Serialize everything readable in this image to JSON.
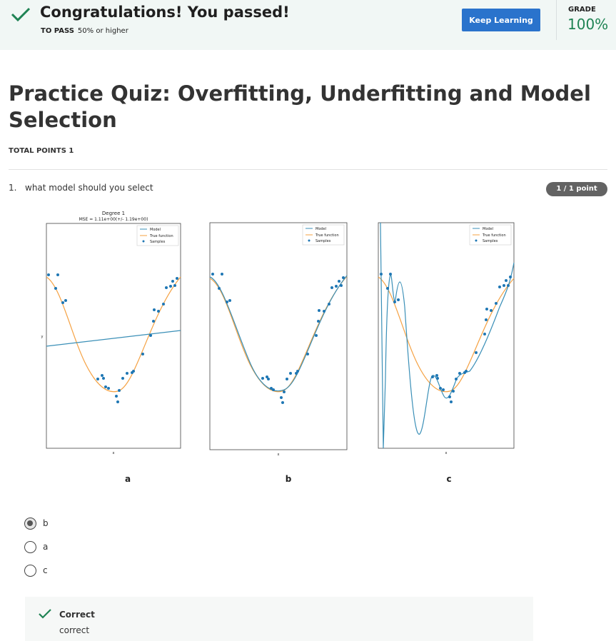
{
  "banner": {
    "message": "Congratulations! You passed!",
    "to_pass_label": "TO PASS",
    "to_pass_value": "50% or higher",
    "keep_learning_label": "Keep Learning",
    "grade_label": "GRADE",
    "grade_value": "100%",
    "success_color": "#1f8354",
    "button_color": "#2a73cc"
  },
  "quiz": {
    "title": "Practice Quiz: Overfitting, Underfitting and Model Selection",
    "total_points": "TOTAL POINTS 1"
  },
  "question": {
    "number": "1.",
    "text": "what model should you select",
    "points": "1 / 1 point",
    "figure": {
      "plots": [
        {
          "label": "a",
          "title_line1": "Degree 1",
          "title_line2": "MSE = 1.11e+00(+/- 1.19e+00)",
          "xlabel": "x",
          "ylabel": "y",
          "legend": [
            "Model",
            "True function",
            "Samples"
          ]
        },
        {
          "label": "b",
          "xlabel": "x",
          "legend": [
            "Model",
            "True function",
            "Samples"
          ]
        },
        {
          "label": "c",
          "xlabel": "x",
          "legend": [
            "Model",
            "True function",
            "Samples"
          ]
        }
      ],
      "colors": {
        "model": "#3a8fb7",
        "true_function": "#f5a142",
        "samples": "#1f77b4"
      }
    },
    "options": [
      {
        "label": "b",
        "selected": true
      },
      {
        "label": "a",
        "selected": false
      },
      {
        "label": "c",
        "selected": false
      }
    ]
  },
  "feedback": {
    "title": "Correct",
    "text": "correct"
  }
}
